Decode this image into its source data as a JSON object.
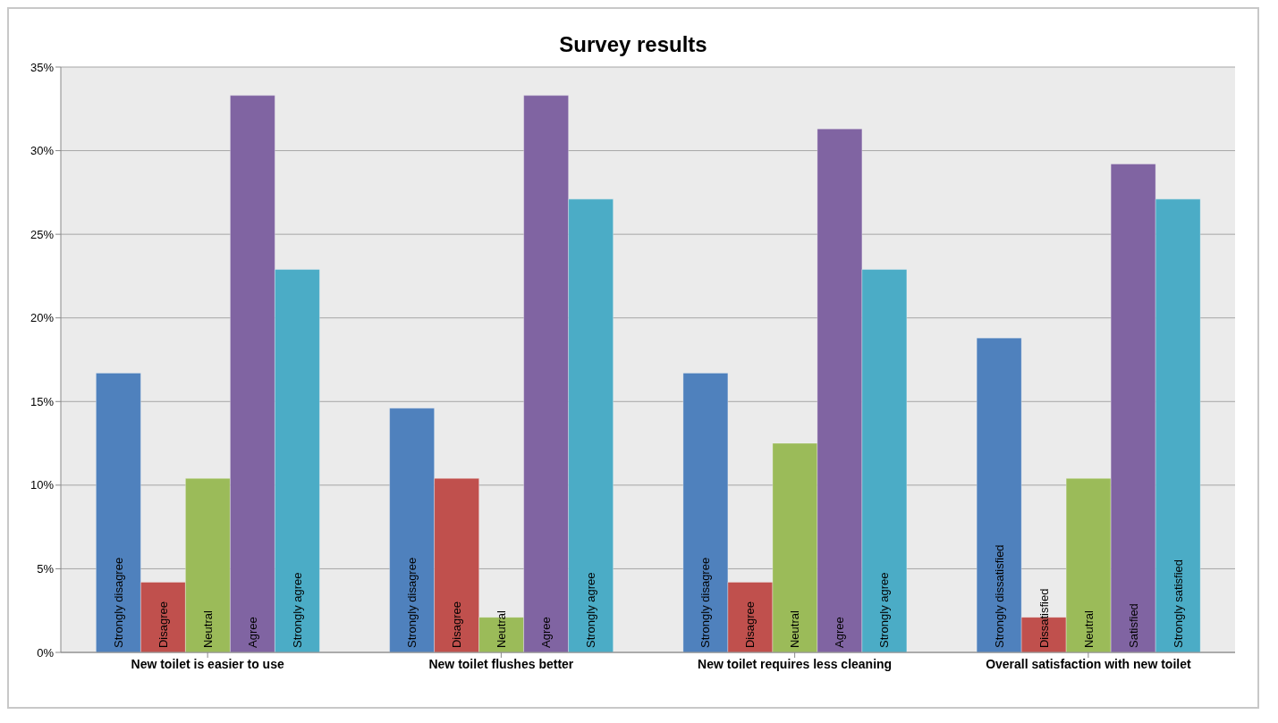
{
  "chart_data": {
    "type": "bar",
    "title": "Survey results",
    "categories": [
      "New toilet is easier to use",
      "New toilet flushes better",
      "New toilet requires less cleaning",
      "Overall satisfaction with new toilet"
    ],
    "series": [
      {
        "color": "#4f81bd",
        "values": [
          16.7,
          14.6,
          16.7,
          18.8
        ],
        "value_labels": [
          "Strongly disagree",
          "Strongly disagree",
          "Strongly disagree",
          "Strongly dissatisfied"
        ]
      },
      {
        "color": "#c0504d",
        "values": [
          4.2,
          10.4,
          4.2,
          2.1
        ],
        "value_labels": [
          "Disagree",
          "Disagree",
          "Disagree",
          "Dissatisfied"
        ]
      },
      {
        "color": "#9bbb59",
        "values": [
          10.4,
          2.1,
          12.5,
          10.4
        ],
        "value_labels": [
          "Neutral",
          "Neutral",
          "Neutral",
          "Neutral"
        ]
      },
      {
        "color": "#8064a2",
        "values": [
          33.3,
          33.3,
          31.3,
          29.2
        ],
        "value_labels": [
          "Agree",
          "Agree",
          "Agree",
          "Satisfied"
        ]
      },
      {
        "color": "#4bacc6",
        "values": [
          22.9,
          27.1,
          22.9,
          27.1
        ],
        "value_labels": [
          "Strongly agree",
          "Strongly agree",
          "Strongly agree",
          "Strongly satisfied"
        ]
      }
    ],
    "ylim": [
      0,
      35
    ],
    "yticks": [
      {
        "value": 0,
        "label": "0%"
      },
      {
        "value": 5,
        "label": "5%"
      },
      {
        "value": 10,
        "label": "10%"
      },
      {
        "value": 15,
        "label": "15%"
      },
      {
        "value": 20,
        "label": "20%"
      },
      {
        "value": 25,
        "label": "25%"
      },
      {
        "value": 30,
        "label": "30%"
      },
      {
        "value": 35,
        "label": "35%"
      }
    ],
    "grid": "y",
    "legend": false
  }
}
